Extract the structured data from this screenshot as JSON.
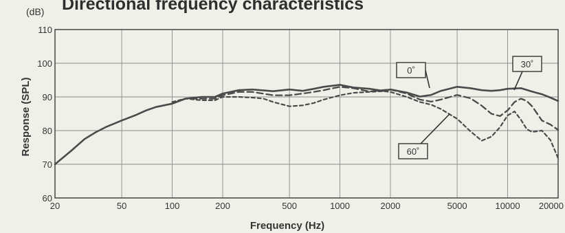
{
  "chart_data": {
    "type": "line",
    "title": "Directional frequency characteristics",
    "unit": "(dB)",
    "xlabel": "Frequency (Hz)",
    "ylabel": "Response (SPL)",
    "x_scale": "log",
    "xlim": [
      20,
      20000
    ],
    "ylim": [
      60,
      110
    ],
    "grid": true,
    "x_ticks": [
      20,
      50,
      100,
      200,
      500,
      1000,
      2000,
      5000,
      10000,
      20000
    ],
    "x_tick_labels": [
      "20",
      "50",
      "100",
      "200",
      "500",
      "1000",
      "2000",
      "5000",
      "10000",
      "20000"
    ],
    "y_ticks": [
      60,
      70,
      80,
      90,
      100,
      110
    ],
    "y_tick_labels": [
      "60",
      "70",
      "80",
      "90",
      "100",
      "110"
    ],
    "series": [
      {
        "name": "0˚",
        "style": "solid",
        "color": "#4a4a4a",
        "x": [
          20,
          25,
          30,
          35,
          40,
          50,
          60,
          70,
          80,
          100,
          120,
          150,
          180,
          200,
          250,
          300,
          400,
          500,
          600,
          700,
          800,
          1000,
          1200,
          1500,
          1800,
          2000,
          2500,
          3000,
          3500,
          4000,
          5000,
          6000,
          7000,
          8000,
          9000,
          10000,
          12000,
          14000,
          16000,
          18000,
          20000
        ],
        "y": [
          70,
          74,
          77.5,
          79.5,
          81,
          83,
          84.5,
          86,
          87,
          88,
          89.5,
          90,
          90,
          91,
          92,
          92.2,
          91.7,
          92.2,
          91.8,
          92.4,
          93,
          93.6,
          92.8,
          92.4,
          91.8,
          92.2,
          91.3,
          90.1,
          90.6,
          91.8,
          93,
          92.6,
          92,
          91.8,
          92,
          92.4,
          92.6,
          91.6,
          90.8,
          89.8,
          88.8
        ]
      },
      {
        "name": "30˚",
        "style": "dash",
        "color": "#4a4a4a",
        "x": [
          100,
          120,
          150,
          180,
          200,
          250,
          300,
          400,
          500,
          600,
          700,
          800,
          1000,
          1200,
          1500,
          1800,
          2000,
          2500,
          3000,
          3500,
          4000,
          5000,
          6000,
          7000,
          8000,
          9000,
          10000,
          11000,
          12000,
          13000,
          14000,
          16000,
          18000,
          20000
        ],
        "y": [
          88,
          89.5,
          89.5,
          89.5,
          90.5,
          91.5,
          91.5,
          90.5,
          90.5,
          91,
          91.5,
          92,
          93,
          92.6,
          91.6,
          92,
          92.2,
          91,
          89.2,
          88.6,
          89.2,
          90.6,
          89.6,
          87.4,
          85,
          84.3,
          86,
          88.5,
          89.5,
          88.8,
          87.2,
          83,
          81.8,
          80.2
        ]
      },
      {
        "name": "60˚",
        "style": "short-dash",
        "color": "#4a4a4a",
        "x": [
          100,
          120,
          150,
          180,
          200,
          250,
          300,
          350,
          400,
          500,
          600,
          700,
          800,
          1000,
          1200,
          1500,
          1800,
          2000,
          2500,
          3000,
          3500,
          4000,
          5000,
          6000,
          7000,
          8000,
          9000,
          10000,
          11000,
          12000,
          13000,
          14000,
          16000,
          18000,
          20000
        ],
        "y": [
          88.5,
          89.5,
          89,
          89,
          90,
          90,
          89.8,
          89.5,
          88.5,
          87.2,
          87.5,
          88.2,
          89.2,
          90.5,
          91.2,
          91.5,
          91.7,
          91.5,
          90,
          88.5,
          87.7,
          86.4,
          83.5,
          79.8,
          77,
          78.2,
          81,
          84.5,
          85.7,
          83.2,
          80.4,
          79.6,
          80,
          77.2,
          71.8
        ]
      }
    ],
    "callouts": [
      {
        "series": 0,
        "label": "0˚"
      },
      {
        "series": 1,
        "label": "30˚"
      },
      {
        "series": 2,
        "label": "60˚"
      }
    ]
  }
}
